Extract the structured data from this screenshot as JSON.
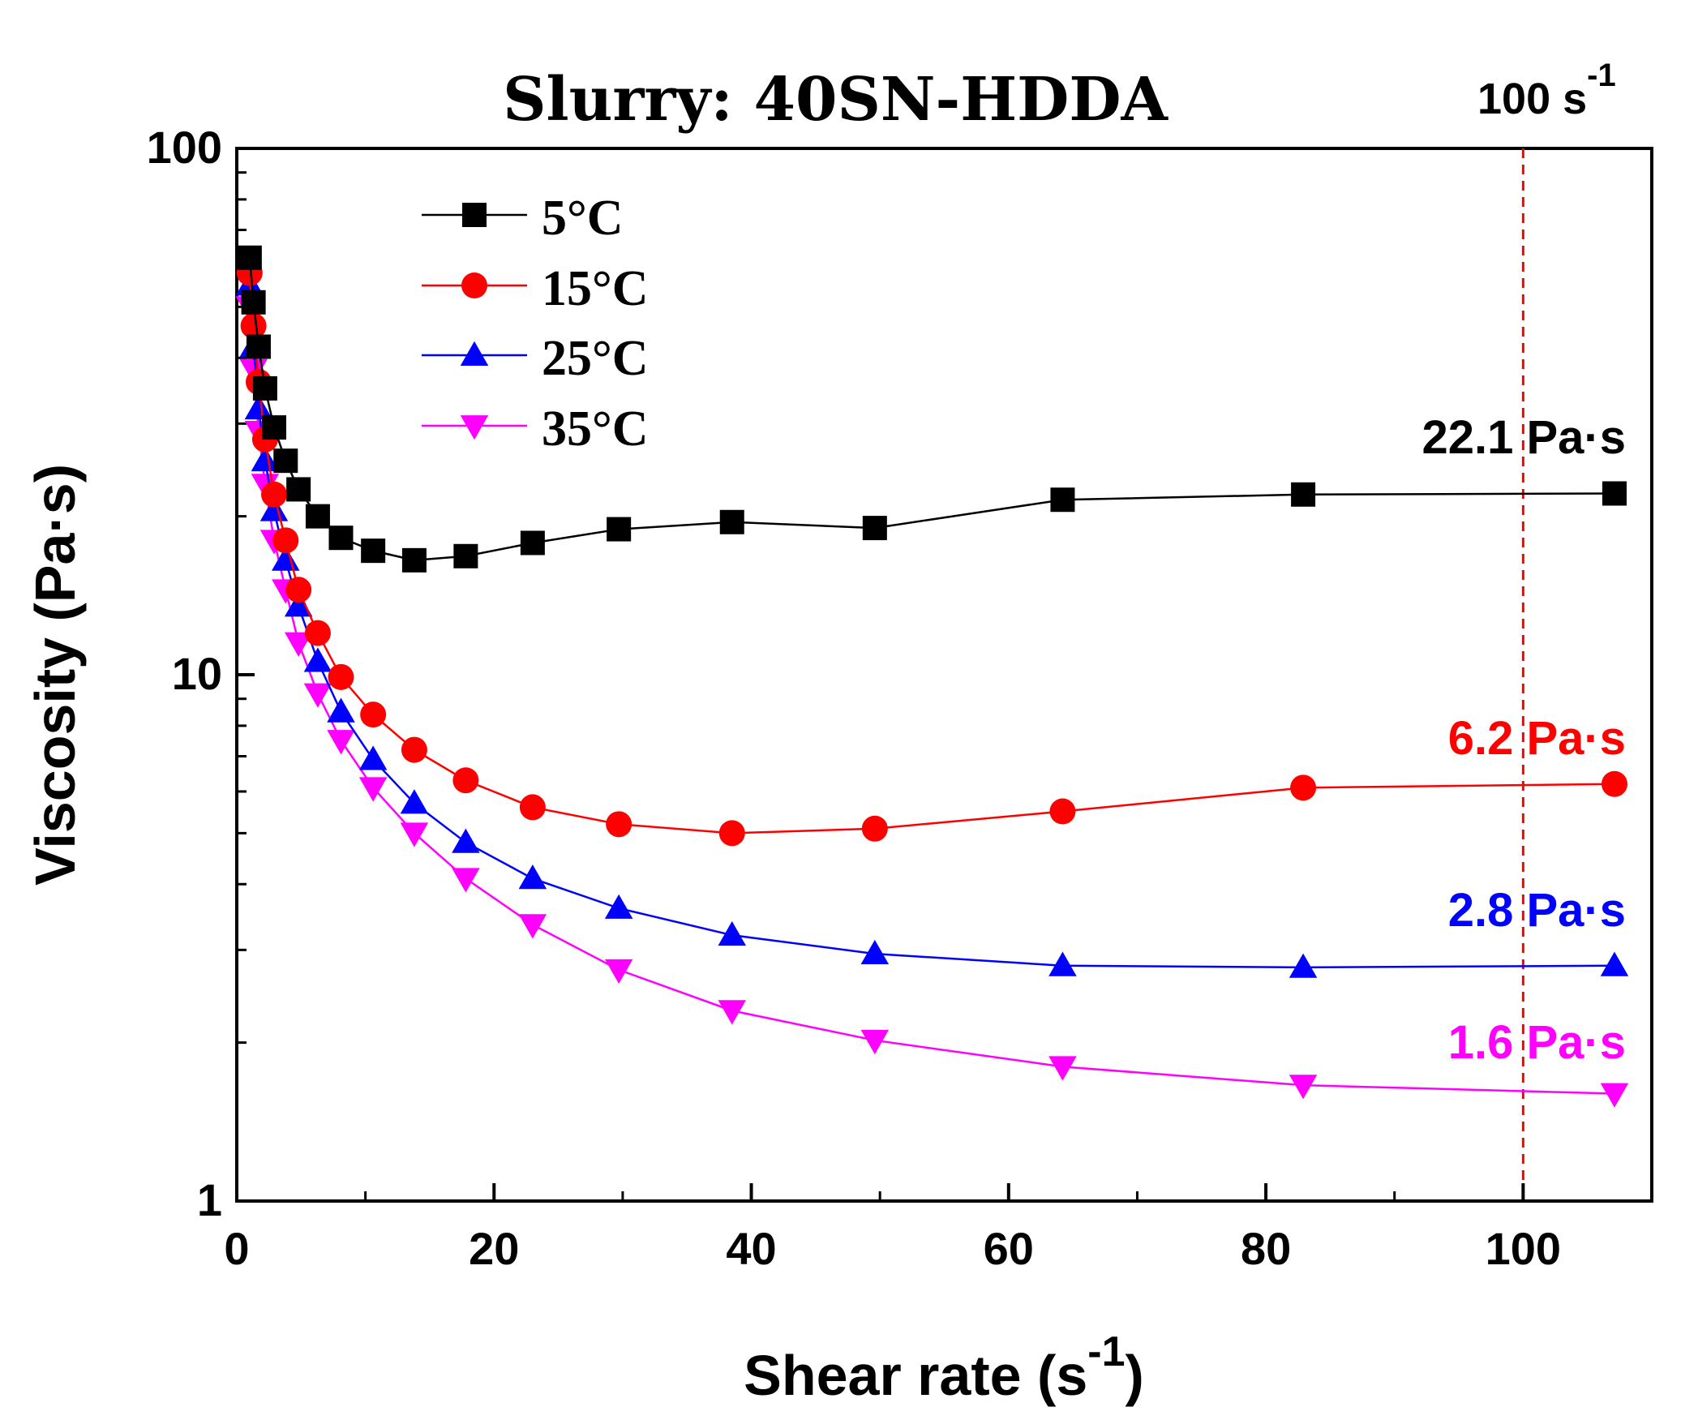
{
  "chart_data": {
    "type": "line",
    "title": "Slurry: 40SN-HDDA",
    "xlabel": "Shear rate (s",
    "xlabel_sup": "-1",
    "xlabel_close": ")",
    "ylabel": "Viscosity (Pa·s)",
    "yscale": "log",
    "xlim": [
      0,
      110
    ],
    "ylim": [
      1,
      100
    ],
    "x_ticks": [
      0,
      20,
      40,
      60,
      80,
      100
    ],
    "y_ticks": [
      1,
      10,
      100
    ],
    "x_tick_labels": [
      "0",
      "20",
      "40",
      "60",
      "80",
      "100"
    ],
    "y_tick_labels": [
      "1",
      "10",
      "100"
    ],
    "x": [
      1.0,
      1.3,
      1.7,
      2.2,
      2.9,
      3.8,
      4.8,
      6.3,
      8.1,
      10.6,
      13.8,
      17.8,
      23.0,
      29.7,
      38.5,
      49.6,
      64.2,
      82.9,
      107.1
    ],
    "series": [
      {
        "name": "5°C",
        "color": "#000000",
        "marker": "square",
        "values": [
          62,
          51,
          42,
          35,
          29.5,
          25.5,
          22.5,
          20.0,
          18.2,
          17.2,
          16.5,
          16.8,
          17.8,
          18.9,
          19.5,
          19.0,
          21.5,
          22.0,
          22.1
        ],
        "end_label": "22.1 Pa·s"
      },
      {
        "name": "15°C",
        "color": "#ff0000",
        "marker": "circle",
        "values": [
          58,
          46,
          36,
          28,
          22,
          18,
          14.5,
          12,
          9.9,
          8.4,
          7.2,
          6.3,
          5.6,
          5.2,
          5.0,
          5.1,
          5.5,
          6.1,
          6.2
        ],
        "end_label": "6.2 Pa·s"
      },
      {
        "name": "25°C",
        "color": "#0000ff",
        "marker": "triangle-up",
        "values": [
          55,
          42,
          32,
          25.5,
          20.5,
          16.5,
          13.5,
          10.6,
          8.5,
          6.9,
          5.7,
          4.8,
          4.1,
          3.6,
          3.2,
          2.95,
          2.8,
          2.78,
          2.8
        ],
        "end_label": "2.8 Pa·s"
      },
      {
        "name": "35°C",
        "color": "#ff00ff",
        "marker": "triangle-down",
        "values": [
          50,
          38,
          29,
          23,
          18,
          14.5,
          11.5,
          9.2,
          7.5,
          6.1,
          5.0,
          4.1,
          3.35,
          2.75,
          2.3,
          2.02,
          1.8,
          1.66,
          1.6
        ],
        "end_label": "1.6 Pa·s"
      }
    ],
    "reference_line": {
      "x": 100,
      "style": "dashed",
      "color": "#ff0000",
      "label": "100 s",
      "label_sup": "-1"
    },
    "legend_position": "top-left"
  }
}
